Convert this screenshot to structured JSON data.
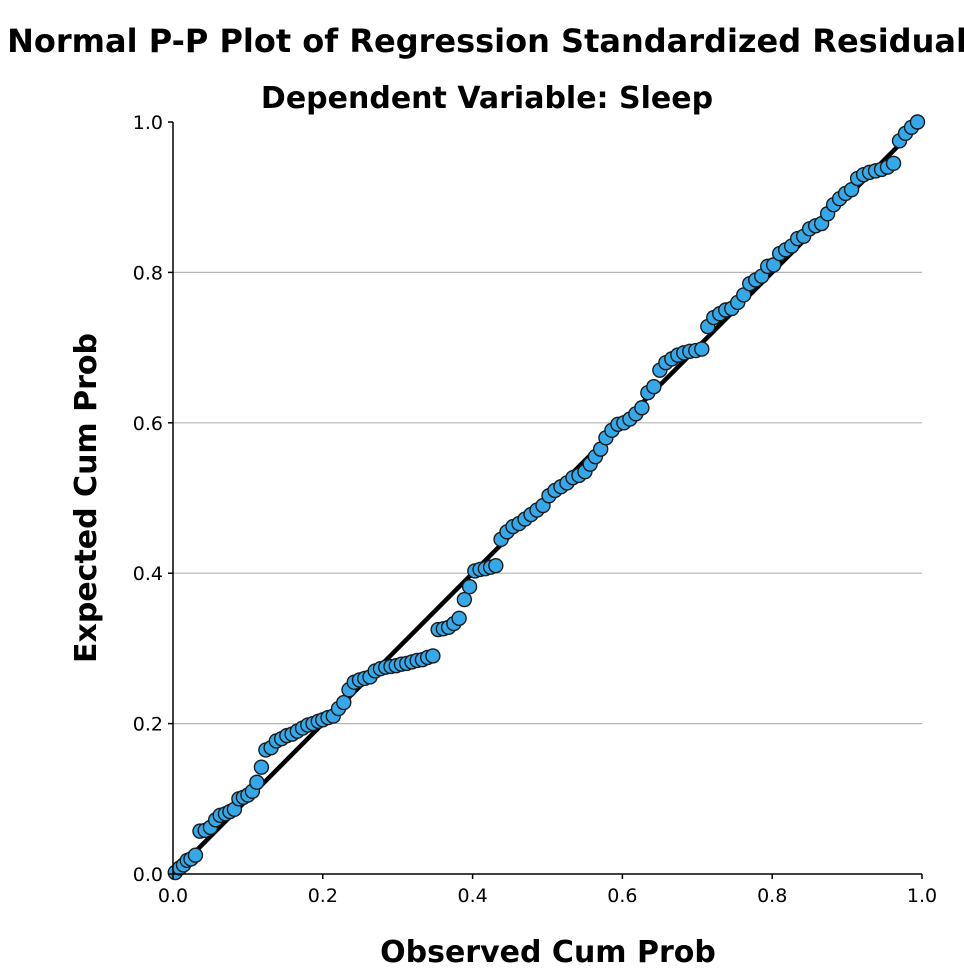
{
  "chart_data": {
    "type": "scatter",
    "title": "Normal P-P Plot of Regression Standardized Residual",
    "subtitle": "Dependent Variable: Sleep",
    "xlabel": "Observed Cum Prob",
    "ylabel": "Expected Cum Prob",
    "xlim": [
      0,
      1
    ],
    "ylim": [
      0,
      1
    ],
    "xticks": [
      "0.0",
      "0.2",
      "0.4",
      "0.6",
      "0.8",
      "1.0"
    ],
    "yticks": [
      "0.0",
      "0.2",
      "0.4",
      "0.6",
      "0.8",
      "1.0"
    ],
    "grid": "horizontal",
    "colors": {
      "point": "#35a8ea",
      "point_edge": "#1a1a1a",
      "reference_line": "#000000",
      "grid": "#b4b4b4"
    },
    "reference_line": {
      "from": [
        0,
        0
      ],
      "to": [
        1,
        1
      ]
    },
    "points": [
      [
        0.003,
        0.002
      ],
      [
        0.009,
        0.008
      ],
      [
        0.014,
        0.012
      ],
      [
        0.019,
        0.018
      ],
      [
        0.024,
        0.02
      ],
      [
        0.03,
        0.025
      ],
      [
        0.036,
        0.057
      ],
      [
        0.043,
        0.058
      ],
      [
        0.05,
        0.062
      ],
      [
        0.057,
        0.072
      ],
      [
        0.063,
        0.078
      ],
      [
        0.07,
        0.08
      ],
      [
        0.076,
        0.083
      ],
      [
        0.082,
        0.086
      ],
      [
        0.088,
        0.1
      ],
      [
        0.094,
        0.102
      ],
      [
        0.1,
        0.105
      ],
      [
        0.106,
        0.11
      ],
      [
        0.112,
        0.122
      ],
      [
        0.118,
        0.142
      ],
      [
        0.124,
        0.165
      ],
      [
        0.131,
        0.168
      ],
      [
        0.138,
        0.177
      ],
      [
        0.145,
        0.18
      ],
      [
        0.152,
        0.184
      ],
      [
        0.159,
        0.186
      ],
      [
        0.166,
        0.19
      ],
      [
        0.173,
        0.194
      ],
      [
        0.18,
        0.198
      ],
      [
        0.187,
        0.2
      ],
      [
        0.194,
        0.203
      ],
      [
        0.2,
        0.205
      ],
      [
        0.207,
        0.208
      ],
      [
        0.214,
        0.21
      ],
      [
        0.221,
        0.22
      ],
      [
        0.228,
        0.228
      ],
      [
        0.235,
        0.245
      ],
      [
        0.242,
        0.255
      ],
      [
        0.249,
        0.258
      ],
      [
        0.256,
        0.26
      ],
      [
        0.263,
        0.262
      ],
      [
        0.27,
        0.27
      ],
      [
        0.277,
        0.273
      ],
      [
        0.284,
        0.275
      ],
      [
        0.291,
        0.276
      ],
      [
        0.298,
        0.277
      ],
      [
        0.305,
        0.279
      ],
      [
        0.312,
        0.28
      ],
      [
        0.319,
        0.282
      ],
      [
        0.326,
        0.284
      ],
      [
        0.333,
        0.285
      ],
      [
        0.34,
        0.288
      ],
      [
        0.347,
        0.29
      ],
      [
        0.354,
        0.325
      ],
      [
        0.361,
        0.326
      ],
      [
        0.368,
        0.328
      ],
      [
        0.375,
        0.333
      ],
      [
        0.382,
        0.34
      ],
      [
        0.389,
        0.365
      ],
      [
        0.396,
        0.382
      ],
      [
        0.403,
        0.403
      ],
      [
        0.41,
        0.405
      ],
      [
        0.417,
        0.406
      ],
      [
        0.424,
        0.408
      ],
      [
        0.431,
        0.41
      ],
      [
        0.438,
        0.445
      ],
      [
        0.446,
        0.455
      ],
      [
        0.454,
        0.462
      ],
      [
        0.462,
        0.466
      ],
      [
        0.47,
        0.472
      ],
      [
        0.478,
        0.478
      ],
      [
        0.486,
        0.484
      ],
      [
        0.494,
        0.49
      ],
      [
        0.502,
        0.503
      ],
      [
        0.51,
        0.51
      ],
      [
        0.518,
        0.515
      ],
      [
        0.526,
        0.52
      ],
      [
        0.534,
        0.527
      ],
      [
        0.542,
        0.53
      ],
      [
        0.55,
        0.535
      ],
      [
        0.557,
        0.545
      ],
      [
        0.564,
        0.555
      ],
      [
        0.571,
        0.565
      ],
      [
        0.578,
        0.58
      ],
      [
        0.586,
        0.59
      ],
      [
        0.594,
        0.598
      ],
      [
        0.602,
        0.6
      ],
      [
        0.61,
        0.605
      ],
      [
        0.618,
        0.612
      ],
      [
        0.626,
        0.62
      ],
      [
        0.634,
        0.64
      ],
      [
        0.642,
        0.648
      ],
      [
        0.65,
        0.67
      ],
      [
        0.658,
        0.68
      ],
      [
        0.666,
        0.685
      ],
      [
        0.674,
        0.69
      ],
      [
        0.682,
        0.693
      ],
      [
        0.69,
        0.695
      ],
      [
        0.698,
        0.696
      ],
      [
        0.706,
        0.698
      ],
      [
        0.714,
        0.728
      ],
      [
        0.722,
        0.74
      ],
      [
        0.73,
        0.745
      ],
      [
        0.738,
        0.75
      ],
      [
        0.746,
        0.752
      ],
      [
        0.754,
        0.76
      ],
      [
        0.762,
        0.77
      ],
      [
        0.77,
        0.785
      ],
      [
        0.778,
        0.79
      ],
      [
        0.786,
        0.795
      ],
      [
        0.794,
        0.808
      ],
      [
        0.802,
        0.81
      ],
      [
        0.81,
        0.825
      ],
      [
        0.818,
        0.83
      ],
      [
        0.826,
        0.835
      ],
      [
        0.834,
        0.845
      ],
      [
        0.842,
        0.848
      ],
      [
        0.85,
        0.858
      ],
      [
        0.858,
        0.862
      ],
      [
        0.866,
        0.865
      ],
      [
        0.874,
        0.878
      ],
      [
        0.882,
        0.89
      ],
      [
        0.89,
        0.898
      ],
      [
        0.898,
        0.905
      ],
      [
        0.906,
        0.91
      ],
      [
        0.914,
        0.925
      ],
      [
        0.922,
        0.93
      ],
      [
        0.93,
        0.933
      ],
      [
        0.938,
        0.935
      ],
      [
        0.946,
        0.937
      ],
      [
        0.954,
        0.94
      ],
      [
        0.962,
        0.945
      ],
      [
        0.97,
        0.975
      ],
      [
        0.978,
        0.985
      ],
      [
        0.986,
        0.993
      ],
      [
        0.994,
        1.0
      ]
    ]
  }
}
